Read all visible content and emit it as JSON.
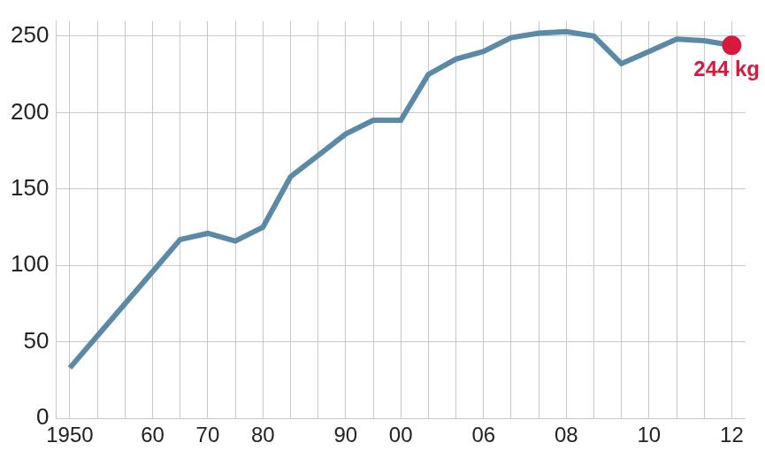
{
  "chart_data": {
    "type": "line",
    "categories": [
      "1950",
      null,
      null,
      "60",
      null,
      "70",
      null,
      "80",
      null,
      null,
      "90",
      null,
      "00",
      null,
      null,
      "06",
      null,
      null,
      "08",
      null,
      null,
      "10",
      null,
      null,
      "12"
    ],
    "values": [
      33,
      54,
      75,
      96,
      117,
      121,
      116,
      125,
      158,
      172,
      186,
      195,
      195,
      225,
      235,
      240,
      249,
      252,
      253,
      250,
      232,
      240,
      248,
      247,
      244
    ],
    "color": "#5b8aa6",
    "annotation": "244 kg",
    "ylim": [
      0,
      260
    ],
    "yticks": [
      0,
      50,
      100,
      150,
      200,
      250
    ],
    "grid": true
  }
}
